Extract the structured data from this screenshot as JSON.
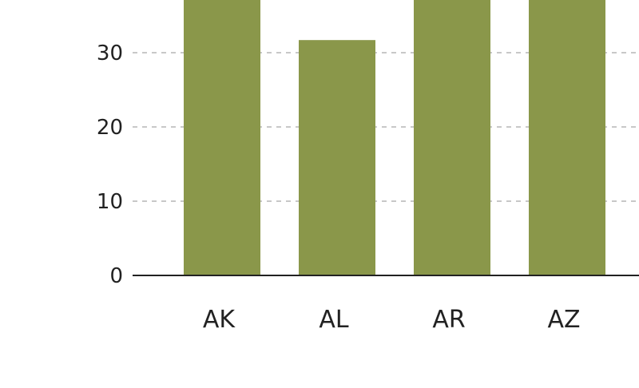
{
  "chart_data": {
    "type": "bar",
    "title": "",
    "xlabel": "",
    "ylabel": "",
    "categories": [
      "AK",
      "AL",
      "AR",
      "AZ"
    ],
    "values": [
      38,
      31.7,
      38,
      38
    ],
    "ylim": [
      0,
      37
    ],
    "yticks": [
      0,
      10,
      20,
      30
    ],
    "bar_color": "#8a974a",
    "grid": true
  }
}
